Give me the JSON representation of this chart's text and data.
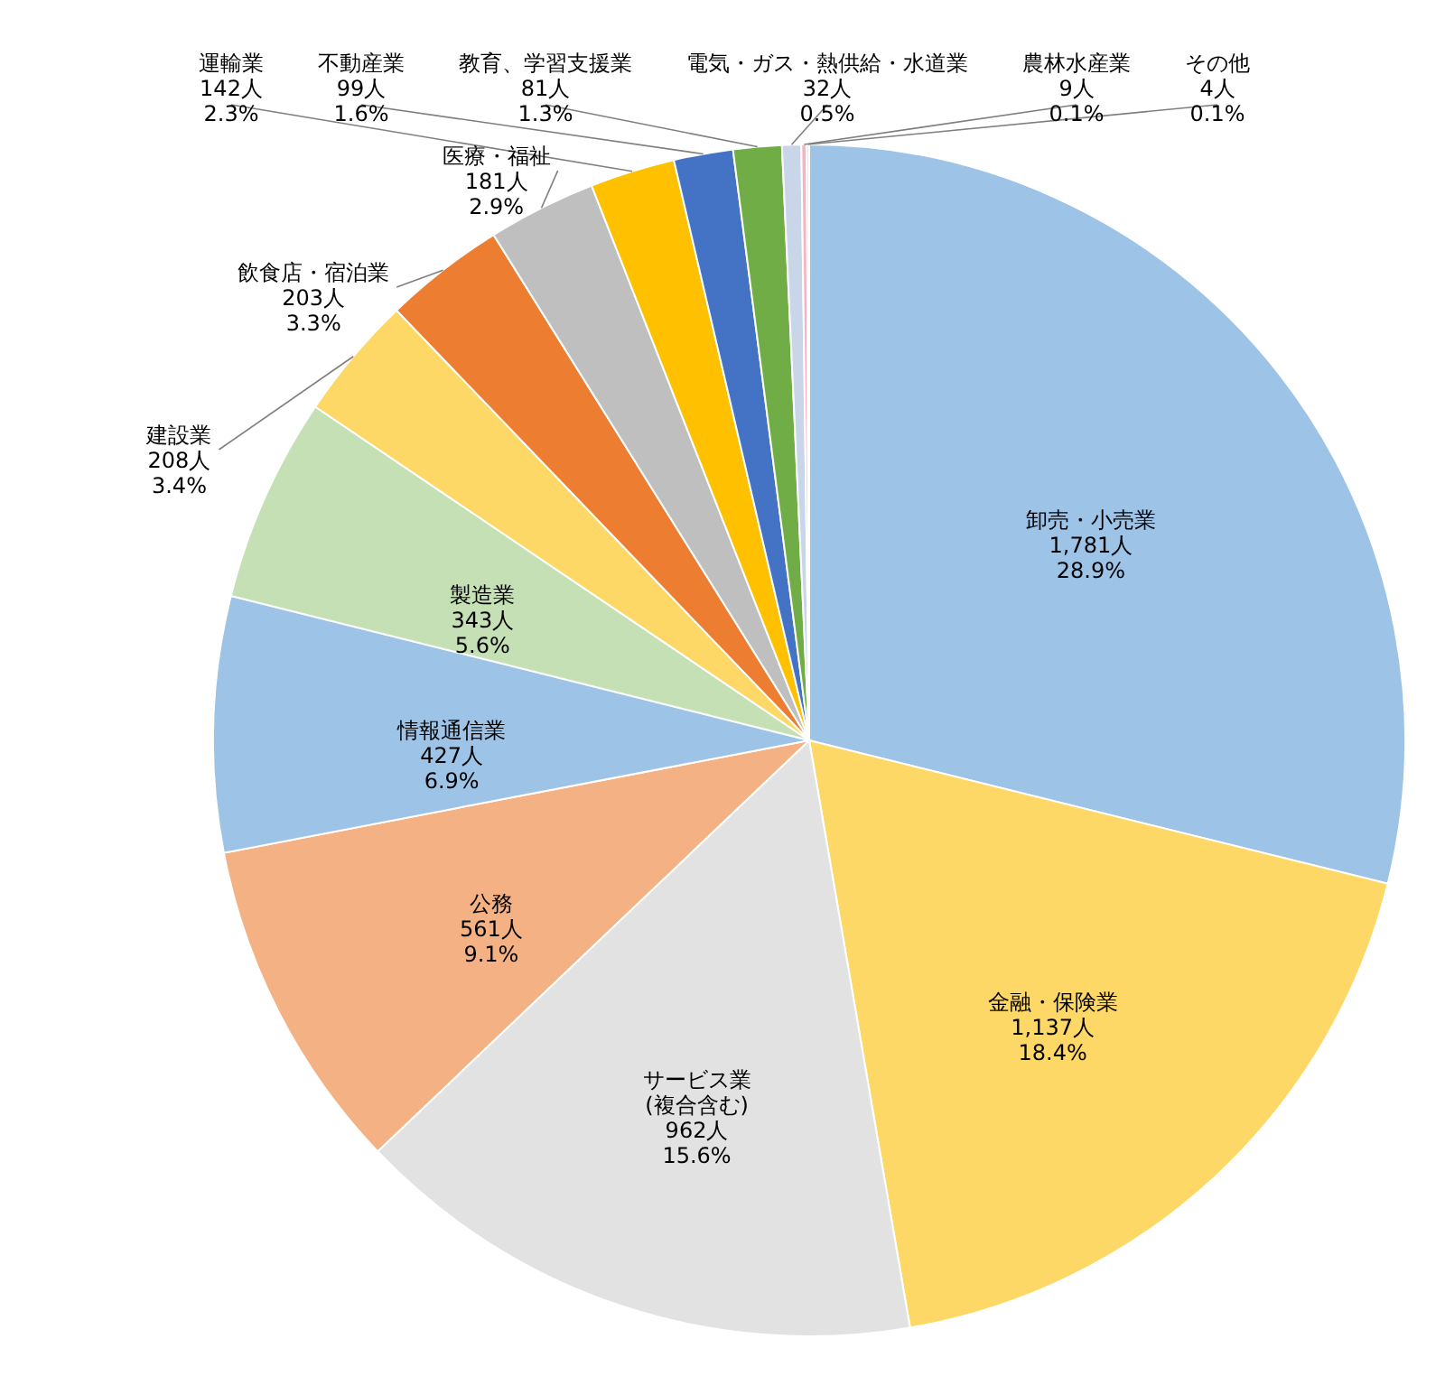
{
  "chart_data": {
    "type": "pie",
    "categories": [
      "卸売・小売業",
      "金融・保険業",
      "サービス業\n(複合含む)",
      "公務",
      "情報通信業",
      "製造業",
      "建設業",
      "飲食店・宿泊業",
      "医療・福祉",
      "運輸業",
      "不動産業",
      "教育、学習支援業",
      "電気・ガス・熱供給・水道業",
      "農林水産業",
      "その他"
    ],
    "values": [
      1781,
      1137,
      962,
      561,
      427,
      343,
      208,
      203,
      181,
      142,
      99,
      81,
      32,
      9,
      4
    ],
    "colors": [
      "#9dc3e6",
      "#fdd866",
      "#e2e2e2",
      "#f4b183",
      "#9dc3e6",
      "#c5e0b4",
      "#fdd866",
      "#ed7d31",
      "#bfbfbf",
      "#ffc000",
      "#4472c4",
      "#70ad47",
      "#c9d6ea",
      "#f4b4c4",
      "#d9d9d9"
    ],
    "value_labels": [
      "1,781人\n28.9%",
      "1,137人\n18.4%",
      "962人\n15.6%",
      "561人\n9.1%",
      "427人\n6.9%",
      "343人\n5.6%",
      "208人\n3.4%",
      "203人\n3.3%",
      "181人\n2.9%",
      "142人\n2.3%",
      "99人\n1.6%",
      "81人\n1.3%",
      "32人\n0.5%",
      "9人\n0.1%",
      "4人\n0.1%"
    ]
  }
}
